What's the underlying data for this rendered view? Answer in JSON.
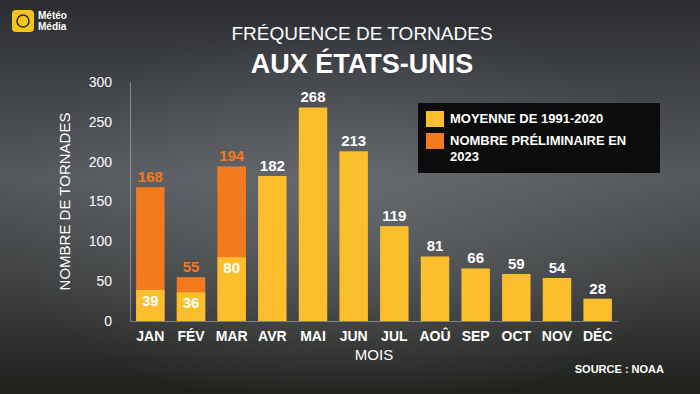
{
  "chart_data": {
    "type": "bar",
    "logo": "Météo Média",
    "title": "AUX ÉTATS-UNIS",
    "subtitle": "FRÉQUENCE DE TORNADES",
    "x_label": "MOIS",
    "y_label": "NOMBRE DE TORNADES",
    "source": "SOURCE : NOAA",
    "categories": [
      "JAN",
      "FÉV",
      "MAR",
      "AVR",
      "MAI",
      "JUN",
      "JUL",
      "AOÛ",
      "SEP",
      "OCT",
      "NOV",
      "DÉC"
    ],
    "series": [
      {
        "name": "MOYENNE DE 1991-2020",
        "color": "#fbbf2d",
        "values": [
          39,
          36,
          80,
          182,
          268,
          213,
          119,
          81,
          66,
          59,
          54,
          28
        ]
      },
      {
        "name": "NOMBRE PRÉLIMINAIRE EN 2023",
        "color": "#f47a1f",
        "values": [
          168,
          55,
          194,
          null,
          null,
          null,
          null,
          null,
          null,
          null,
          null,
          null
        ]
      }
    ],
    "ylim": [
      0,
      300
    ],
    "yticks": [
      0,
      50,
      100,
      150,
      200,
      250,
      300
    ],
    "stacked": false,
    "grid": false,
    "legend": "top-right",
    "data_labels": true
  }
}
